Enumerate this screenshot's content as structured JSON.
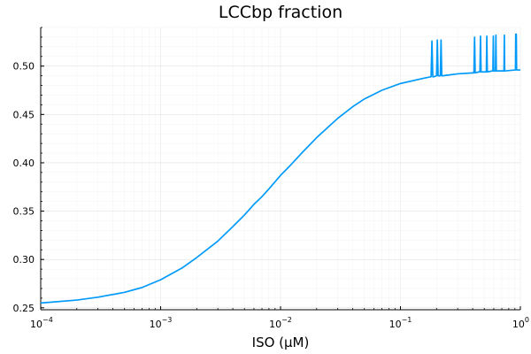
{
  "chart_data": {
    "type": "line",
    "title": "LCCbp fraction",
    "xlabel": "ISO (μM)",
    "ylabel": "",
    "xscale": "log10",
    "xlim": [
      0.0001,
      1
    ],
    "ylim": [
      0.248,
      0.54
    ],
    "grid": true,
    "legend": "none",
    "x_ticks": [
      {
        "value": 0.0001,
        "base": "10",
        "exp": "−4"
      },
      {
        "value": 0.001,
        "base": "10",
        "exp": "−3"
      },
      {
        "value": 0.01,
        "base": "10",
        "exp": "−2"
      },
      {
        "value": 0.1,
        "base": "10",
        "exp": "−1"
      },
      {
        "value": 1,
        "base": "10",
        "exp": "0"
      }
    ],
    "y_ticks": [
      "0.25",
      "0.30",
      "0.35",
      "0.40",
      "0.45",
      "0.50"
    ],
    "series": [
      {
        "color": "#009af9",
        "x": [
          0.0001,
          0.0002,
          0.0003,
          0.0005,
          0.0007,
          0.001,
          0.0015,
          0.002,
          0.003,
          0.004,
          0.005,
          0.006,
          0.007,
          0.008,
          0.01,
          0.012,
          0.015,
          0.02,
          0.025,
          0.03,
          0.04,
          0.05,
          0.07,
          0.1,
          0.15,
          0.18,
          0.183,
          0.186,
          0.19,
          0.2,
          0.203,
          0.206,
          0.21,
          0.215,
          0.218,
          0.221,
          0.225,
          0.3,
          0.4,
          0.41,
          0.415,
          0.42,
          0.45,
          0.46,
          0.465,
          0.47,
          0.51,
          0.52,
          0.525,
          0.53,
          0.58,
          0.59,
          0.595,
          0.6,
          0.61,
          0.62,
          0.625,
          0.63,
          0.72,
          0.73,
          0.735,
          0.74,
          0.9,
          0.91,
          0.915,
          0.925,
          0.93,
          1.0
        ],
        "y": [
          0.255,
          0.258,
          0.261,
          0.266,
          0.271,
          0.279,
          0.291,
          0.302,
          0.319,
          0.334,
          0.346,
          0.357,
          0.365,
          0.373,
          0.387,
          0.397,
          0.41,
          0.426,
          0.437,
          0.446,
          0.458,
          0.466,
          0.475,
          0.482,
          0.487,
          0.489,
          0.526,
          0.489,
          0.489,
          0.49,
          0.527,
          0.49,
          0.49,
          0.49,
          0.527,
          0.49,
          0.49,
          0.492,
          0.493,
          0.493,
          0.53,
          0.493,
          0.494,
          0.494,
          0.531,
          0.494,
          0.494,
          0.494,
          0.531,
          0.494,
          0.495,
          0.495,
          0.531,
          0.495,
          0.495,
          0.495,
          0.532,
          0.495,
          0.495,
          0.495,
          0.532,
          0.495,
          0.496,
          0.496,
          0.533,
          0.533,
          0.496,
          0.496
        ]
      }
    ]
  }
}
